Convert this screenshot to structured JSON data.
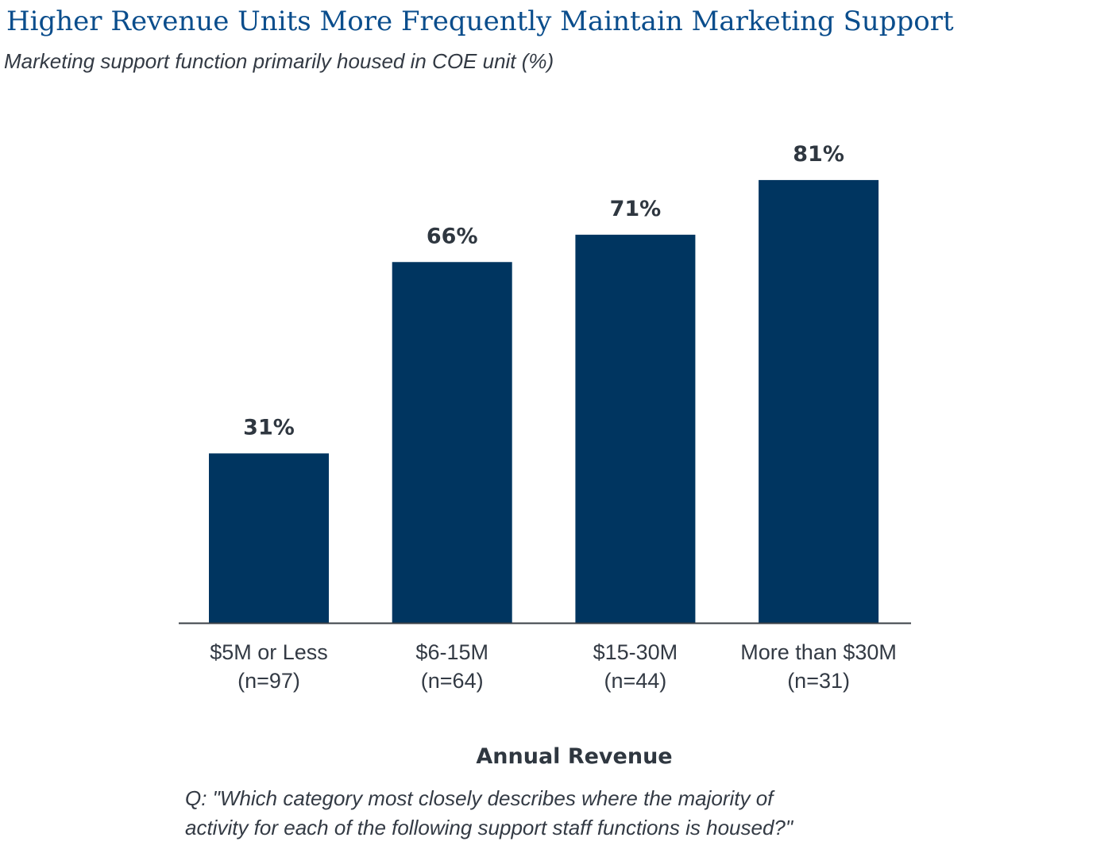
{
  "chart_data": {
    "type": "bar",
    "title": "Higher Revenue Units More Frequently Maintain Marketing Support",
    "subtitle": "Marketing support function primarily housed in COE unit (%)",
    "categories": [
      "$5M or Less",
      "$6-15M",
      "$15-30M",
      "More than $30M"
    ],
    "sample_sizes": [
      "(n=97)",
      "(n=64)",
      "(n=44)",
      "(n=31)"
    ],
    "values": [
      31,
      66,
      71,
      81
    ],
    "value_labels": [
      "31%",
      "66%",
      "71%",
      "81%"
    ],
    "xlabel": "Annual Revenue",
    "ylabel": "",
    "ylim": [
      0,
      100
    ],
    "grid": false,
    "bar_color": "#003560",
    "note_lines": [
      "Q: \"Which category most closely describes where the majority of",
      "activity for each of the following support staff functions is housed?\""
    ]
  }
}
